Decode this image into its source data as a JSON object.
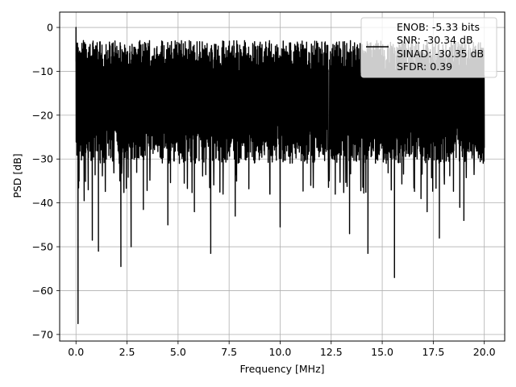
{
  "chart_data": {
    "type": "line",
    "title": "",
    "xlabel": "Frequency [MHz]",
    "ylabel": "PSD [dB]",
    "xlim": [
      -0.8,
      21.0
    ],
    "ylim": [
      -71.5,
      3.5
    ],
    "xticks": [
      0.0,
      2.5,
      5.0,
      7.5,
      10.0,
      12.5,
      15.0,
      17.5,
      20.0
    ],
    "xtick_labels": [
      "0.0",
      "2.5",
      "5.0",
      "7.5",
      "10.0",
      "12.5",
      "15.0",
      "17.5",
      "20.0"
    ],
    "yticks": [
      0,
      -10,
      -20,
      -30,
      -40,
      -50,
      -60,
      -70
    ],
    "ytick_labels": [
      "0",
      "−10",
      "−20",
      "−30",
      "−40",
      "−50",
      "−60",
      "−70"
    ],
    "grid": true,
    "legend_position": "top-right",
    "legend_lines": [
      "ENOB: -5.33 bits",
      "SNR: -30.34 dB",
      "SINAD: -30.35 dB",
      "SFDR: 0.39"
    ],
    "line_color": "#000000",
    "grid_color": "#b0b0b0",
    "series": [
      {
        "x_range": [
          0.0,
          20.0
        ],
        "y_band": [
          -33,
          -3
        ],
        "peak": {
          "x": 0.0,
          "y": 0.0
        },
        "points": [
          {
            "x": 0.0,
            "y": 0.0
          },
          {
            "x": 0.02,
            "y": -18
          },
          {
            "x": 0.05,
            "y": -29
          },
          {
            "x": 0.1,
            "y": -67.5
          },
          {
            "x": 0.15,
            "y": -35
          },
          {
            "x": 0.4,
            "y": -39.5
          },
          {
            "x": 0.6,
            "y": -37
          },
          {
            "x": 0.8,
            "y": -48.5
          },
          {
            "x": 1.1,
            "y": -51
          },
          {
            "x": 2.2,
            "y": -54.5
          },
          {
            "x": 2.7,
            "y": -50
          },
          {
            "x": 3.3,
            "y": -41.5
          },
          {
            "x": 4.5,
            "y": -45
          },
          {
            "x": 5.8,
            "y": -42
          },
          {
            "x": 6.6,
            "y": -51.5
          },
          {
            "x": 7.8,
            "y": -43
          },
          {
            "x": 9.5,
            "y": -38
          },
          {
            "x": 10.0,
            "y": -45.5
          },
          {
            "x": 11.5,
            "y": -36
          },
          {
            "x": 12.7,
            "y": -38
          },
          {
            "x": 13.4,
            "y": -47
          },
          {
            "x": 14.3,
            "y": -51.5
          },
          {
            "x": 15.6,
            "y": -57
          },
          {
            "x": 16.9,
            "y": -39
          },
          {
            "x": 17.2,
            "y": -42
          },
          {
            "x": 17.8,
            "y": -48
          },
          {
            "x": 18.8,
            "y": -41
          },
          {
            "x": 19.0,
            "y": -44
          },
          {
            "x": 19.9,
            "y": -28
          }
        ]
      }
    ]
  }
}
